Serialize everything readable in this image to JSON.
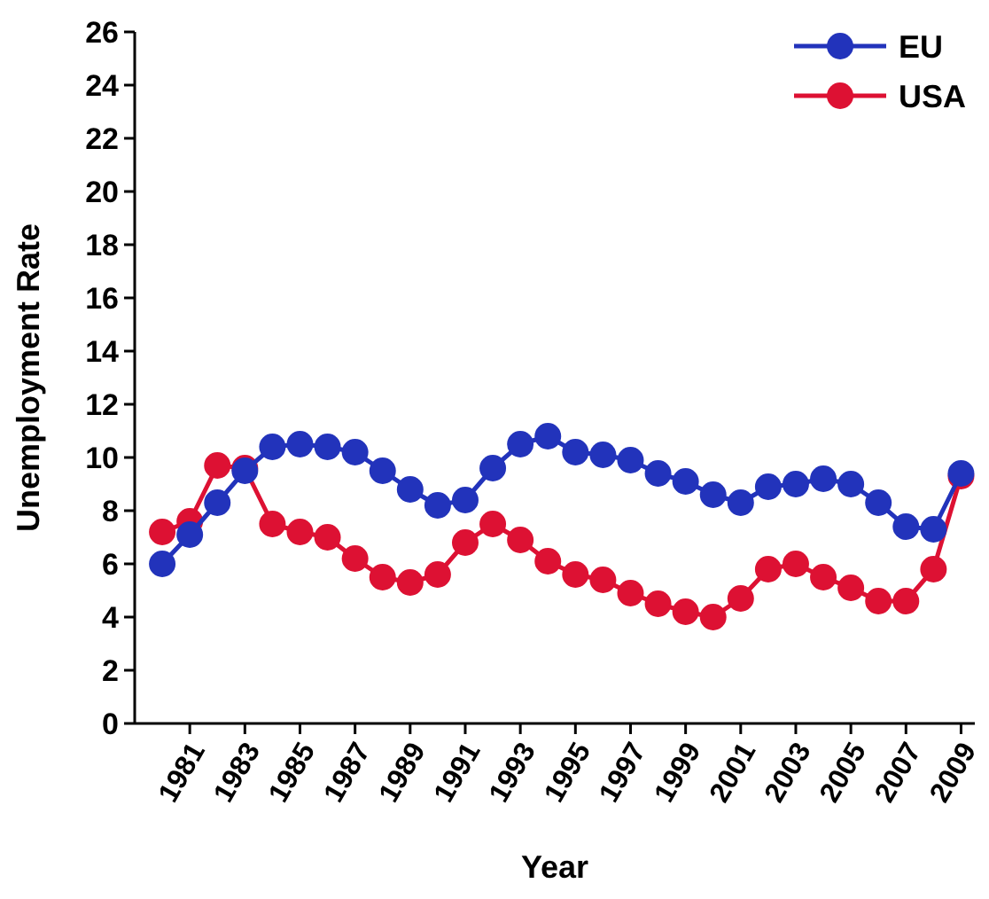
{
  "chart_data": {
    "type": "line",
    "xlabel": "Year",
    "ylabel": "Unemployment Rate",
    "x": [
      1980,
      1981,
      1982,
      1983,
      1984,
      1985,
      1986,
      1987,
      1988,
      1989,
      1990,
      1991,
      1992,
      1993,
      1994,
      1995,
      1996,
      1997,
      1998,
      1999,
      2000,
      2001,
      2002,
      2003,
      2004,
      2005,
      2006,
      2007,
      2008,
      2009
    ],
    "series": [
      {
        "name": "EU",
        "color": "#2233bb",
        "values": [
          6.0,
          7.1,
          8.3,
          9.5,
          10.4,
          10.5,
          10.4,
          10.2,
          9.5,
          8.8,
          8.2,
          8.4,
          9.6,
          10.5,
          10.8,
          10.2,
          10.1,
          9.9,
          9.4,
          9.1,
          8.6,
          8.3,
          8.9,
          9.0,
          9.2,
          9.0,
          8.3,
          7.4,
          7.3,
          9.4
        ]
      },
      {
        "name": "USA",
        "color": "#dd1133",
        "values": [
          7.2,
          7.6,
          9.7,
          9.6,
          7.5,
          7.2,
          7.0,
          6.2,
          5.5,
          5.3,
          5.6,
          6.8,
          7.5,
          6.9,
          6.1,
          5.6,
          5.4,
          4.9,
          4.5,
          4.2,
          4.0,
          4.7,
          5.8,
          6.0,
          5.5,
          5.1,
          4.6,
          4.6,
          5.8,
          9.3
        ]
      }
    ],
    "xlim": [
      1979,
      2009.5
    ],
    "xticks": [
      1981,
      1983,
      1985,
      1987,
      1989,
      1991,
      1993,
      1995,
      1997,
      1999,
      2001,
      2003,
      2005,
      2007,
      2009
    ],
    "ylim": [
      0,
      26
    ],
    "yticks": [
      0,
      2,
      4,
      6,
      8,
      10,
      12,
      14,
      16,
      18,
      20,
      22,
      24,
      26
    ],
    "marker": "circle",
    "line_style": "solid",
    "legend": "top right",
    "grid": false
  }
}
